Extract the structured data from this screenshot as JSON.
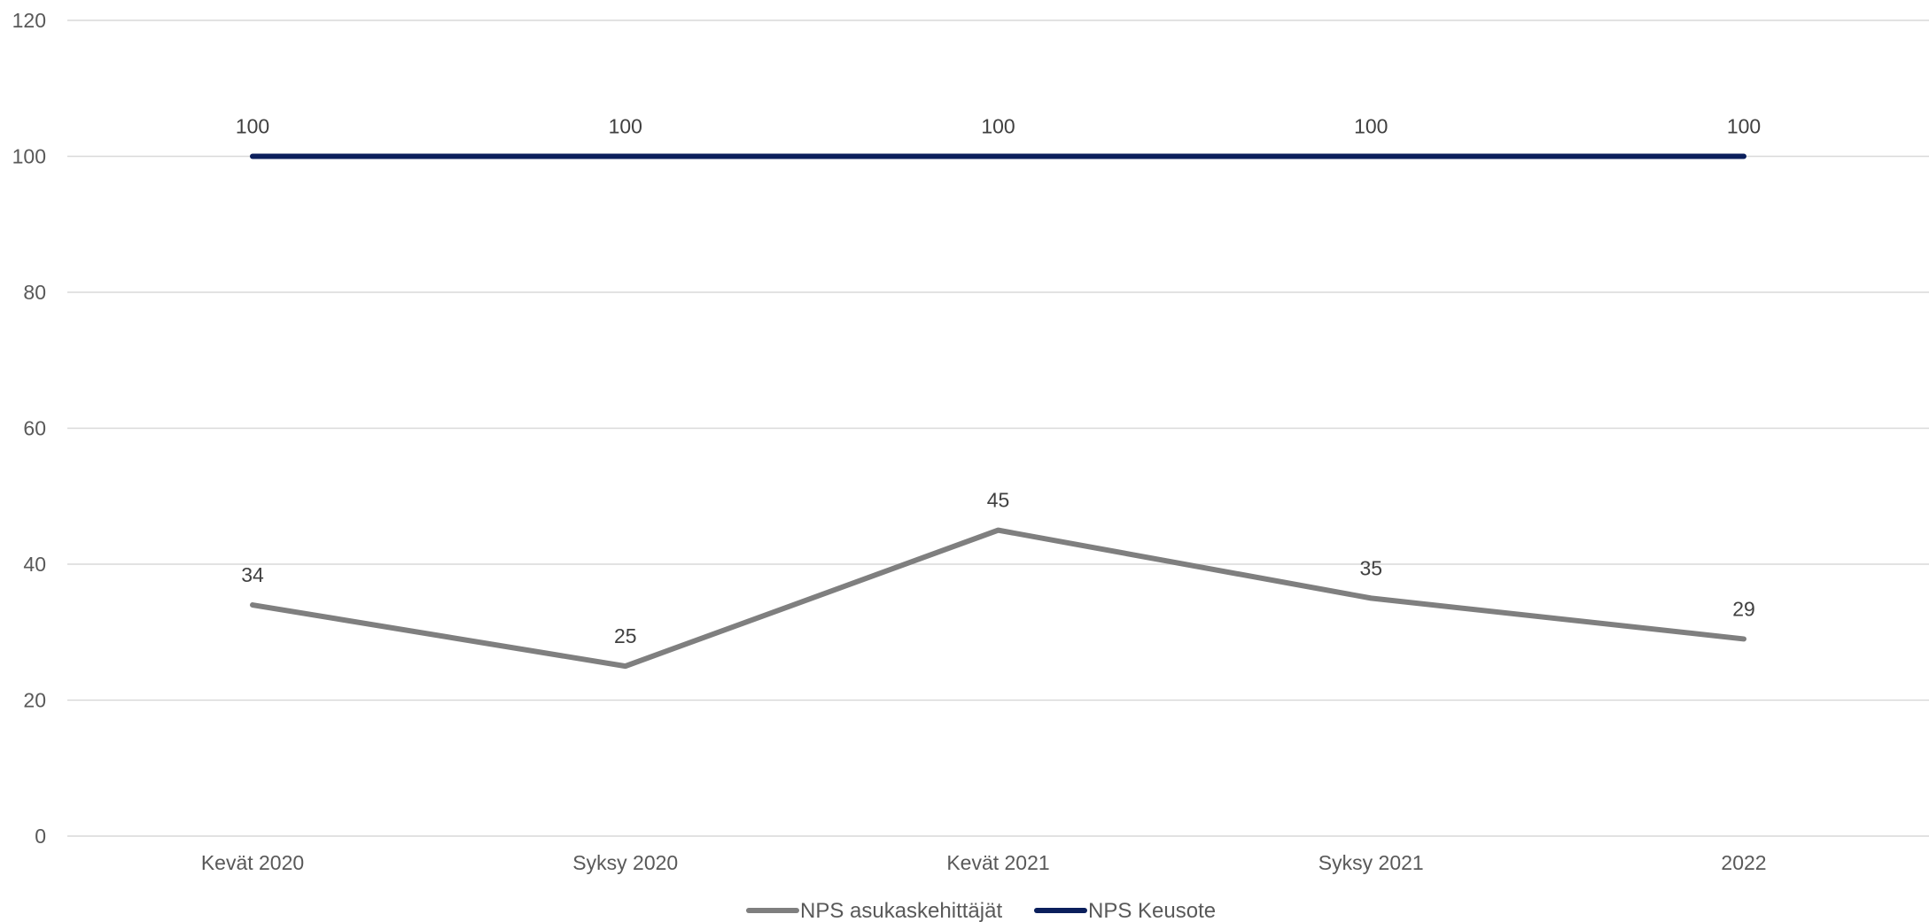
{
  "chart_data": {
    "type": "line",
    "title": "",
    "xlabel": "",
    "ylabel": "",
    "categories": [
      "Kevät 2020",
      "Syksy 2020",
      "Kevät 2021",
      "Syksy 2021",
      "2022"
    ],
    "ylim": [
      0,
      120
    ],
    "yticks": [
      0,
      20,
      40,
      60,
      80,
      100,
      120
    ],
    "grid": true,
    "legend_position": "bottom",
    "series": [
      {
        "name": "NPS asukaskehittäjät",
        "values": [
          34,
          25,
          45,
          35,
          29
        ],
        "color": "#7f7f7f",
        "data_labels": [
          "34",
          "25",
          "45",
          "35",
          "29"
        ]
      },
      {
        "name": "NPS Keusote",
        "values": [
          100,
          100,
          100,
          100,
          100
        ],
        "color": "#0b1f5c",
        "data_labels": [
          "100",
          "100",
          "100",
          "100",
          "100"
        ]
      }
    ]
  }
}
